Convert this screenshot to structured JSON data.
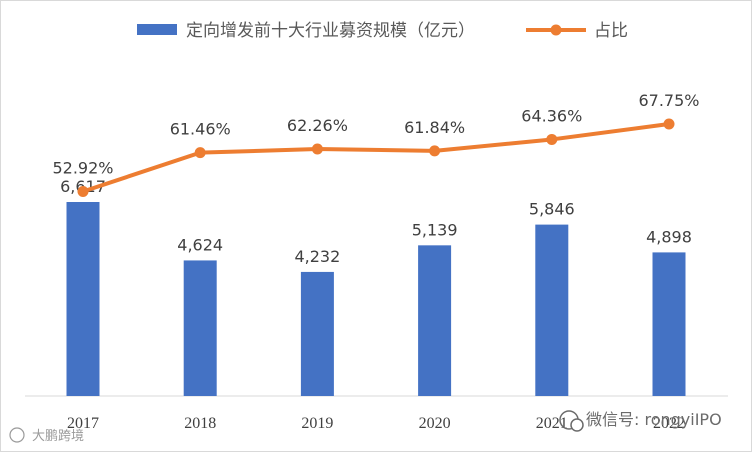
{
  "chart_data": {
    "type": "bar",
    "categories": [
      "2017",
      "2018",
      "2019",
      "2020",
      "2021",
      "2022"
    ],
    "series": [
      {
        "name": "定向增发前十大行业募资规模（亿元）",
        "kind": "bar",
        "color": "#4472C4",
        "values": [
          6617,
          4624,
          4232,
          5139,
          5846,
          4898
        ],
        "labels": [
          "6,617",
          "4,624",
          "4,232",
          "5,139",
          "5,846",
          "4,898"
        ]
      },
      {
        "name": "占比",
        "kind": "line",
        "color": "#ED7D31",
        "values": [
          52.92,
          61.46,
          62.26,
          61.84,
          64.36,
          67.75
        ],
        "labels": [
          "52.92%",
          "61.46%",
          "62.26%",
          "61.84%",
          "64.36%",
          "67.75%"
        ]
      }
    ],
    "legend": "top",
    "grid": false
  },
  "watermark": {
    "wechat": "微信号: rongyiIPO",
    "corner": "大鹏跨境"
  }
}
